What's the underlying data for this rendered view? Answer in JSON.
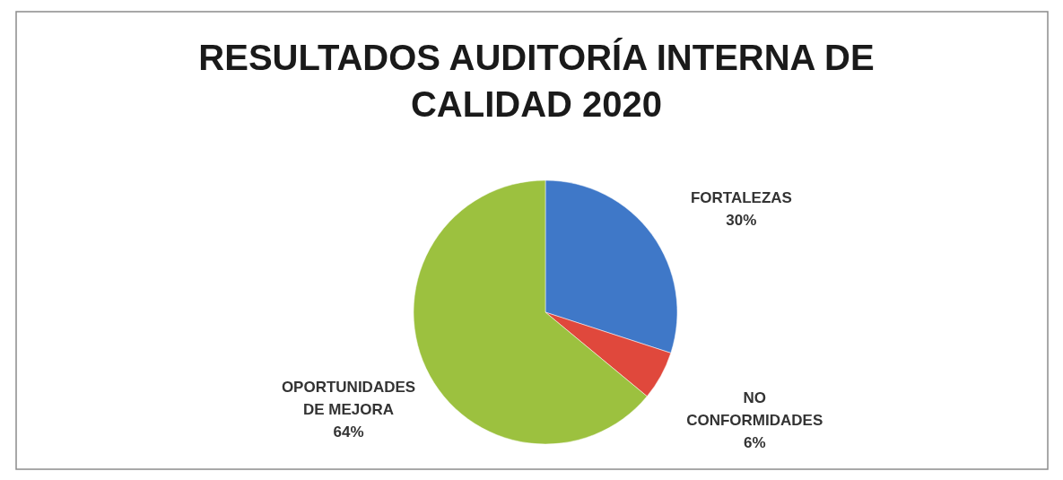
{
  "chart_data": {
    "type": "pie",
    "title": "RESULTADOS AUDITORÍA INTERNA DE CALIDAD 2020",
    "categories": [
      "FORTALEZAS",
      "NO CONFORMIDADES",
      "OPORTUNIDADES DE MEJORA"
    ],
    "values": [
      30,
      6,
      64
    ],
    "colors": [
      "#3f78c8",
      "#e0483c",
      "#9cc13f"
    ],
    "value_labels": [
      "30%",
      "6%",
      "64%"
    ]
  }
}
